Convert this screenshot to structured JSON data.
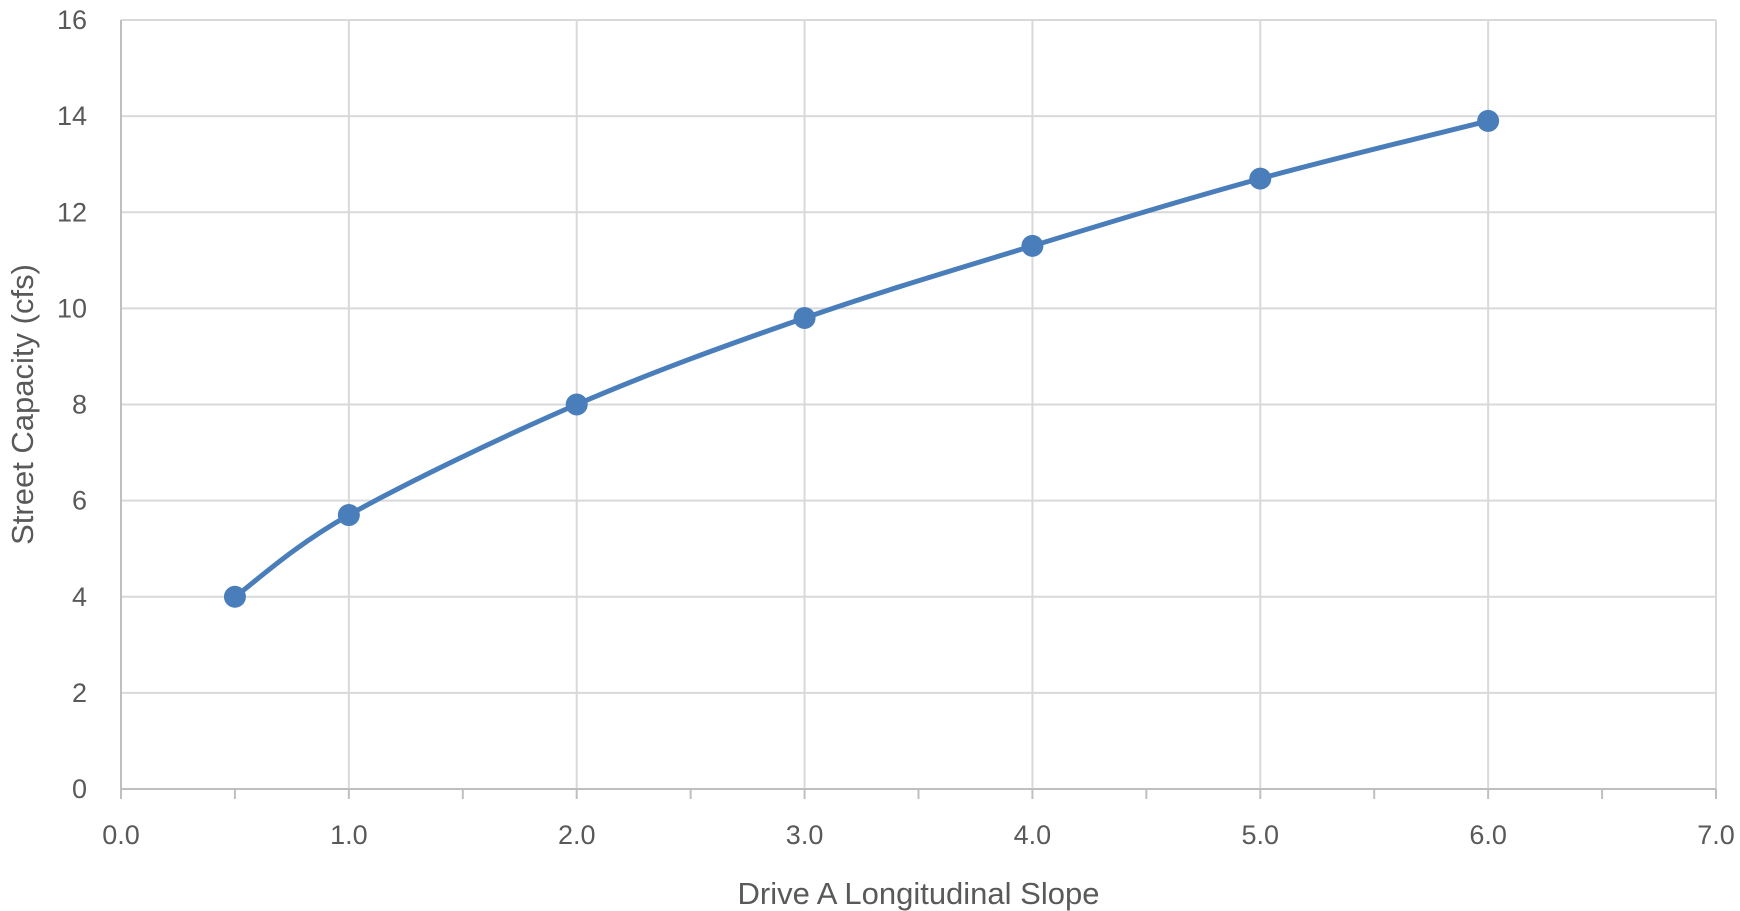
{
  "chart_data": {
    "type": "scatter",
    "title": "",
    "xlabel": "Drive A Longitudinal Slope",
    "ylabel": "Street Capacity (cfs)",
    "xlim": [
      0,
      7
    ],
    "ylim": [
      0,
      16
    ],
    "x_ticks": [
      0,
      1,
      2,
      3,
      4,
      5,
      6,
      7
    ],
    "x_tick_labels": [
      "0.0",
      "1.0",
      "2.0",
      "3.0",
      "4.0",
      "5.0",
      "6.0",
      "7.0"
    ],
    "x_minor_ticks": [
      0.5,
      1.5,
      2.5,
      3.5,
      4.5,
      5.5,
      6.5
    ],
    "y_ticks": [
      0,
      2,
      4,
      6,
      8,
      10,
      12,
      14,
      16
    ],
    "y_tick_labels": [
      "0",
      "2",
      "4",
      "6",
      "8",
      "10",
      "12",
      "14",
      "16"
    ],
    "grid": true,
    "legend": "none",
    "line_style": "smooth",
    "color": "#4a7ebb",
    "series": [
      {
        "x": [
          0.5,
          1.0,
          2.0,
          3.0,
          4.0,
          5.0,
          6.0
        ],
        "y": [
          4.0,
          5.7,
          8.0,
          9.8,
          11.3,
          12.7,
          13.9
        ]
      }
    ]
  }
}
